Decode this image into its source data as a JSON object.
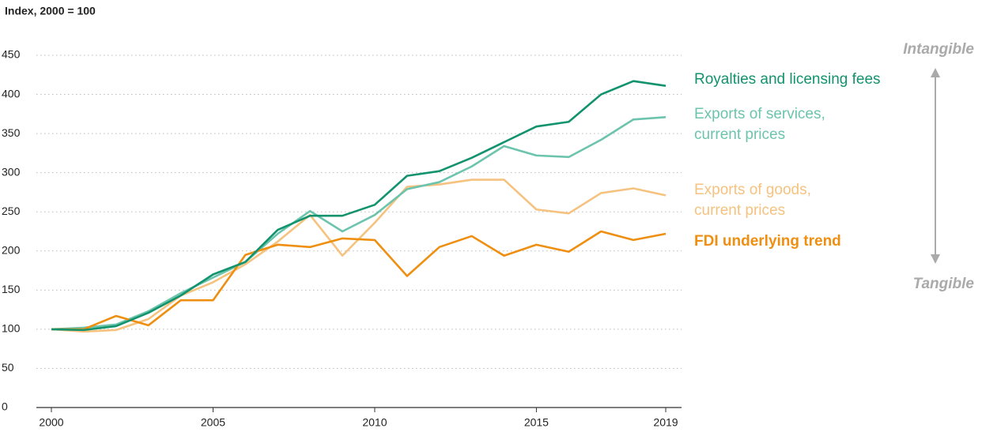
{
  "chart_data": {
    "type": "line",
    "ylabel": "Index, 2000 = 100",
    "x": [
      2000,
      2001,
      2002,
      2003,
      2004,
      2005,
      2006,
      2007,
      2008,
      2009,
      2010,
      2011,
      2012,
      2013,
      2014,
      2015,
      2016,
      2017,
      2018,
      2019
    ],
    "series": [
      {
        "name": "Royalties and licensing fees",
        "color": "#12936e",
        "values": [
          100,
          99,
          104,
          121,
          143,
          170,
          186,
          227,
          245,
          245,
          259,
          296,
          302,
          319,
          339,
          359,
          365,
          400,
          417,
          411
        ]
      },
      {
        "name": "Exports of services, current prices",
        "color": "#6cc4ad",
        "values": [
          100,
          102,
          106,
          123,
          146,
          166,
          186,
          222,
          251,
          225,
          246,
          279,
          288,
          308,
          334,
          322,
          320,
          342,
          368,
          371
        ]
      },
      {
        "name": "Exports of goods, current prices",
        "color": "#f5c27f",
        "values": [
          100,
          97,
          99,
          113,
          143,
          160,
          183,
          212,
          246,
          194,
          236,
          282,
          285,
          291,
          291,
          253,
          248,
          274,
          280,
          271
        ]
      },
      {
        "name": "FDI underlying trend",
        "color": "#ee8f12",
        "values": [
          100,
          100,
          117,
          105,
          137,
          137,
          195,
          208,
          205,
          216,
          214,
          168,
          205,
          219,
          194,
          208,
          199,
          225,
          214,
          222
        ]
      }
    ],
    "xlim": [
      2000,
      2019
    ],
    "xticks": [
      2000,
      2005,
      2010,
      2015,
      2019
    ],
    "ylim": [
      0,
      450
    ],
    "yticks": [
      0,
      50,
      100,
      150,
      200,
      250,
      300,
      350,
      400,
      450
    ],
    "grid": true,
    "annotations": [
      "Intangible",
      "Tangible"
    ]
  }
}
